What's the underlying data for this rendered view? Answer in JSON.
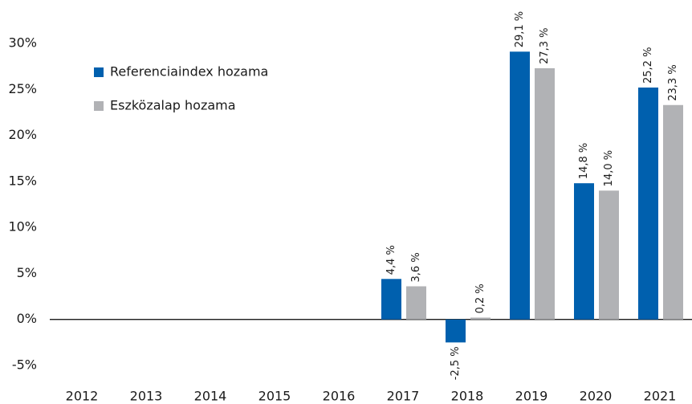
{
  "chart_data": {
    "type": "bar",
    "categories": [
      "2012",
      "2013",
      "2014",
      "2015",
      "2016",
      "2017",
      "2018",
      "2019",
      "2020",
      "2021"
    ],
    "series": [
      {
        "name": "Referenciaindex hozama",
        "color": "#0060ae",
        "values": [
          null,
          null,
          null,
          null,
          null,
          4.4,
          -2.5,
          29.1,
          14.8,
          25.2
        ],
        "value_labels": [
          null,
          null,
          null,
          null,
          null,
          "4,4 %",
          "-2,5 %",
          "29,1 %",
          "14,8 %",
          "25,2 %"
        ]
      },
      {
        "name": "Eszközalap hozama",
        "color": "#b1b2b5",
        "values": [
          null,
          null,
          null,
          null,
          null,
          3.6,
          0.2,
          27.3,
          14.0,
          23.3
        ],
        "value_labels": [
          null,
          null,
          null,
          null,
          null,
          "3,6 %",
          "0,2 %",
          "27,3 %",
          "14,0 %",
          "23,3 %"
        ]
      }
    ],
    "ylim": [
      -5,
      30
    ],
    "yticks": [
      {
        "value": -5,
        "label": "-5%"
      },
      {
        "value": 0,
        "label": "0%"
      },
      {
        "value": 5,
        "label": "5%"
      },
      {
        "value": 10,
        "label": "10%"
      },
      {
        "value": 15,
        "label": "15%"
      },
      {
        "value": 20,
        "label": "20%"
      },
      {
        "value": 25,
        "label": "25%"
      },
      {
        "value": 30,
        "label": "30%"
      }
    ],
    "grid": false,
    "legend": "upper left"
  }
}
